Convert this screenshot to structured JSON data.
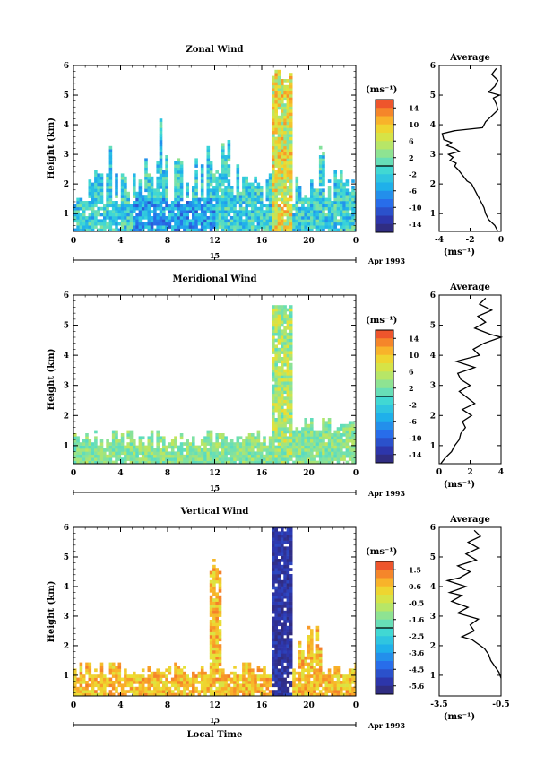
{
  "chart_data": [
    {
      "type": "heatmap",
      "title": "Zonal Wind",
      "ylabel": "Height (km)",
      "xlabel": "",
      "x_ticks": [
        "0",
        "4",
        "8",
        "12",
        "16",
        "20",
        "0"
      ],
      "y_ticks": [
        "1",
        "2",
        "3",
        "4",
        "5",
        "6"
      ],
      "xlim": [
        0,
        24
      ],
      "ylim": [
        0.4,
        6.0
      ],
      "date_tick": "15",
      "date_label": "Apr 1993",
      "colorbar": {
        "unit": "(ms⁻¹)",
        "ticks": [
          "14",
          "10",
          "6",
          "2",
          "-2",
          "-6",
          "-10",
          "-14"
        ],
        "range": [
          -16,
          16
        ]
      },
      "average": {
        "title": "Average",
        "xlabel": "(ms⁻¹)",
        "x_ticks": [
          "-4",
          "-2",
          "0"
        ],
        "xlim": [
          -4,
          0
        ],
        "y_ticks": [
          "1",
          "2",
          "3",
          "4",
          "5",
          "6"
        ],
        "ylim": [
          0.4,
          6.0
        ],
        "profile": [
          [
            -0.2,
            0.4
          ],
          [
            -0.4,
            0.6
          ],
          [
            -0.8,
            0.8
          ],
          [
            -1.0,
            1.0
          ],
          [
            -1.1,
            1.2
          ],
          [
            -1.3,
            1.4
          ],
          [
            -1.5,
            1.6
          ],
          [
            -1.7,
            1.8
          ],
          [
            -1.9,
            2.0
          ],
          [
            -2.2,
            2.1
          ],
          [
            -2.5,
            2.3
          ],
          [
            -2.8,
            2.5
          ],
          [
            -3.0,
            2.6
          ],
          [
            -2.9,
            2.7
          ],
          [
            -3.3,
            2.8
          ],
          [
            -3.1,
            2.9
          ],
          [
            -3.4,
            3.0
          ],
          [
            -2.7,
            3.1
          ],
          [
            -3.0,
            3.2
          ],
          [
            -3.5,
            3.3
          ],
          [
            -3.2,
            3.4
          ],
          [
            -3.7,
            3.5
          ],
          [
            -3.8,
            3.7
          ],
          [
            -3.0,
            3.8
          ],
          [
            -1.2,
            3.9
          ],
          [
            -1.0,
            4.1
          ],
          [
            -0.6,
            4.3
          ],
          [
            -0.2,
            4.5
          ],
          [
            -0.3,
            4.7
          ],
          [
            -0.5,
            4.9
          ],
          [
            -0.1,
            5.0
          ],
          [
            -0.8,
            5.1
          ],
          [
            -0.4,
            5.3
          ],
          [
            -0.2,
            5.5
          ],
          [
            -0.6,
            5.7
          ],
          [
            -0.3,
            5.9
          ]
        ]
      }
    },
    {
      "type": "heatmap",
      "title": "Meridional Wind",
      "ylabel": "Height (km)",
      "xlabel": "",
      "x_ticks": [
        "0",
        "4",
        "8",
        "12",
        "16",
        "20",
        "0"
      ],
      "y_ticks": [
        "1",
        "2",
        "3",
        "4",
        "5",
        "6"
      ],
      "xlim": [
        0,
        24
      ],
      "ylim": [
        0.4,
        6.0
      ],
      "date_tick": "15",
      "date_label": "Apr 1993",
      "colorbar": {
        "unit": "(ms⁻¹)",
        "ticks": [
          "14",
          "10",
          "6",
          "2",
          "-2",
          "-6",
          "-10",
          "-14"
        ],
        "range": [
          -16,
          16
        ]
      },
      "average": {
        "title": "Average",
        "xlabel": "(ms⁻¹)",
        "x_ticks": [
          "0",
          "2",
          "4"
        ],
        "xlim": [
          0,
          4
        ],
        "y_ticks": [
          "1",
          "2",
          "3",
          "4",
          "5",
          "6"
        ],
        "ylim": [
          0.4,
          6.0
        ],
        "profile": [
          [
            0.1,
            0.4
          ],
          [
            0.4,
            0.6
          ],
          [
            0.8,
            0.8
          ],
          [
            1.0,
            1.0
          ],
          [
            1.3,
            1.2
          ],
          [
            1.4,
            1.4
          ],
          [
            1.7,
            1.6
          ],
          [
            1.5,
            1.8
          ],
          [
            2.1,
            2.0
          ],
          [
            1.5,
            2.2
          ],
          [
            2.3,
            2.4
          ],
          [
            1.8,
            2.6
          ],
          [
            1.3,
            2.8
          ],
          [
            2.0,
            3.0
          ],
          [
            1.4,
            3.2
          ],
          [
            1.2,
            3.4
          ],
          [
            2.3,
            3.6
          ],
          [
            1.1,
            3.8
          ],
          [
            2.6,
            4.0
          ],
          [
            2.2,
            4.2
          ],
          [
            2.9,
            4.4
          ],
          [
            4.0,
            4.6
          ],
          [
            3.3,
            4.7
          ],
          [
            2.3,
            4.9
          ],
          [
            3.0,
            5.1
          ],
          [
            2.5,
            5.3
          ],
          [
            3.4,
            5.5
          ],
          [
            2.6,
            5.7
          ],
          [
            3.0,
            5.9
          ]
        ]
      }
    },
    {
      "type": "heatmap",
      "title": "Vertical Wind",
      "ylabel": "Height (km)",
      "xlabel": "Local Time",
      "x_ticks": [
        "0",
        "4",
        "8",
        "12",
        "16",
        "20",
        "0"
      ],
      "y_ticks": [
        "1",
        "2",
        "3",
        "4",
        "5",
        "6"
      ],
      "xlim": [
        0,
        24
      ],
      "ylim": [
        0.3,
        6.0
      ],
      "date_tick": "15",
      "date_label": "Apr 1993",
      "colorbar": {
        "unit": "(ms⁻¹)",
        "ticks": [
          "1.5",
          "0.6",
          "-0.5",
          "-1.6",
          "-2.5",
          "-3.6",
          "-4.5",
          "-5.6"
        ],
        "range": [
          -6,
          2
        ]
      },
      "average": {
        "title": "Average",
        "xlabel": "(ms⁻¹)",
        "x_ticks": [
          "-3.5",
          "-0.5"
        ],
        "xlim": [
          -3.5,
          -0.5
        ],
        "y_ticks": [
          "1",
          "2",
          "3",
          "4",
          "5",
          "6"
        ],
        "ylim": [
          0.3,
          6.0
        ],
        "profile": [
          [
            -0.5,
            0.9
          ],
          [
            -0.6,
            1.1
          ],
          [
            -0.8,
            1.3
          ],
          [
            -1.0,
            1.5
          ],
          [
            -1.1,
            1.7
          ],
          [
            -1.3,
            1.9
          ],
          [
            -1.5,
            2.0
          ],
          [
            -1.9,
            2.2
          ],
          [
            -2.4,
            2.3
          ],
          [
            -1.8,
            2.5
          ],
          [
            -2.0,
            2.7
          ],
          [
            -1.6,
            2.9
          ],
          [
            -2.6,
            3.1
          ],
          [
            -2.1,
            3.3
          ],
          [
            -2.9,
            3.5
          ],
          [
            -2.4,
            3.7
          ],
          [
            -3.0,
            3.8
          ],
          [
            -2.2,
            4.0
          ],
          [
            -3.1,
            4.2
          ],
          [
            -2.5,
            4.3
          ],
          [
            -2.0,
            4.5
          ],
          [
            -2.6,
            4.7
          ],
          [
            -1.7,
            4.9
          ],
          [
            -2.2,
            5.1
          ],
          [
            -1.6,
            5.3
          ],
          [
            -2.1,
            5.5
          ],
          [
            -1.5,
            5.7
          ],
          [
            -1.8,
            5.9
          ]
        ]
      }
    }
  ]
}
